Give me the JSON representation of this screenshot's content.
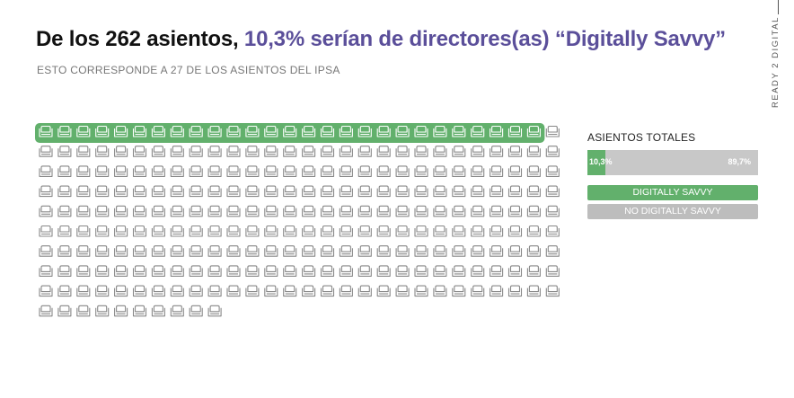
{
  "header": {
    "title_part1": "De los 262 asientos, ",
    "title_part2": "10,3% serían de directores(as) “Digitally Savvy”",
    "subtitle": "ESTO CORRESPONDE A 27 DE LOS ASIENTOS DEL IPSA",
    "side_label": "READY 2 DIGITAL"
  },
  "colors": {
    "savvy": "#62b06c",
    "no_savvy": "#bdbdbd",
    "highlight_text": "#5b4f9a"
  },
  "legend": {
    "title": "ASIENTOS TOTALES",
    "items": [
      {
        "label": "DIGITALLY SAVVY"
      },
      {
        "label": "NO DIGITALLY SAVVY"
      }
    ]
  },
  "chart_data": [
    {
      "type": "waffle",
      "total_seats": 262,
      "highlighted_seats": 27,
      "seats_per_row": 28,
      "categories": [
        "DIGITALLY SAVVY",
        "NO DIGITALLY SAVVY"
      ],
      "values": [
        27,
        235
      ]
    },
    {
      "type": "bar",
      "orientation": "horizontal",
      "stacked": true,
      "categories": [
        "ASIENTOS TOTALES"
      ],
      "series": [
        {
          "name": "DIGITALLY SAVVY",
          "values": [
            10.3
          ],
          "label": "10,3%"
        },
        {
          "name": "NO DIGITALLY SAVVY",
          "values": [
            89.7
          ],
          "label": "89,7%"
        }
      ]
    }
  ]
}
